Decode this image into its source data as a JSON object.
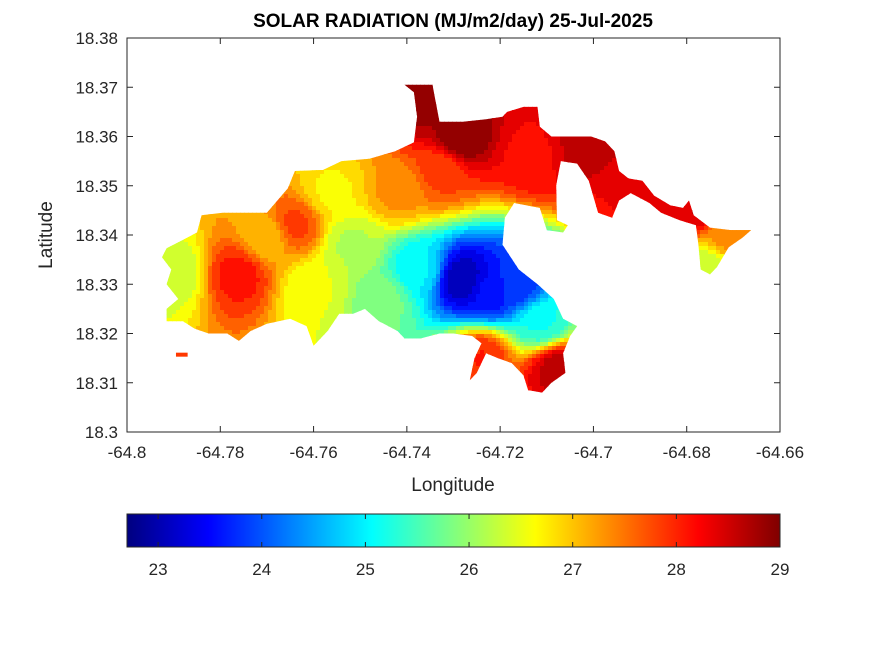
{
  "chart_data": {
    "type": "heatmap",
    "title": "SOLAR RADIATION (MJ/m2/day) 25-Jul-2025",
    "xlabel": "Longitude",
    "ylabel": "Latitude",
    "xlim": [
      -64.8,
      -64.66
    ],
    "ylim": [
      18.3,
      18.38
    ],
    "xticks": [
      -64.8,
      -64.78,
      -64.76,
      -64.74,
      -64.72,
      -64.7,
      -64.68,
      -64.66
    ],
    "yticks": [
      18.3,
      18.31,
      18.32,
      18.33,
      18.34,
      18.35,
      18.36,
      18.37,
      18.38
    ],
    "xtick_labels": [
      "-64.8",
      "-64.78",
      "-64.76",
      "-64.74",
      "-64.72",
      "-64.7",
      "-64.68",
      "-64.66"
    ],
    "ytick_labels": [
      "18.3",
      "18.31",
      "18.32",
      "18.33",
      "18.34",
      "18.35",
      "18.36",
      "18.37",
      "18.38"
    ],
    "colormap": "jet",
    "colorbar": {
      "orientation": "horizontal",
      "location": "below",
      "range": [
        22.7,
        29
      ],
      "ticks": [
        23,
        24,
        25,
        26,
        27,
        28,
        29
      ],
      "tick_labels": [
        "23",
        "24",
        "25",
        "26",
        "27",
        "28",
        "29"
      ]
    },
    "land_outline": [
      [
        -64.7915,
        18.3373
      ],
      [
        -64.788,
        18.339
      ],
      [
        -64.785,
        18.3405
      ],
      [
        -64.784,
        18.344
      ],
      [
        -64.7795,
        18.3445
      ],
      [
        -64.77,
        18.3445
      ],
      [
        -64.7655,
        18.3495
      ],
      [
        -64.764,
        18.353
      ],
      [
        -64.758,
        18.3532
      ],
      [
        -64.754,
        18.355
      ],
      [
        -64.748,
        18.3555
      ],
      [
        -64.7425,
        18.357
      ],
      [
        -64.7385,
        18.3588
      ],
      [
        -64.7378,
        18.364
      ],
      [
        -64.7385,
        18.369
      ],
      [
        -64.7405,
        18.3705
      ],
      [
        -64.7345,
        18.3705
      ],
      [
        -64.734,
        18.368
      ],
      [
        -64.733,
        18.363
      ],
      [
        -64.728,
        18.363
      ],
      [
        -64.723,
        18.3635
      ],
      [
        -64.7195,
        18.364
      ],
      [
        -64.7185,
        18.365
      ],
      [
        -64.715,
        18.366
      ],
      [
        -64.712,
        18.366
      ],
      [
        -64.7115,
        18.362
      ],
      [
        -64.709,
        18.36
      ],
      [
        -64.7055,
        18.36
      ],
      [
        -64.7005,
        18.36
      ],
      [
        -64.6975,
        18.359
      ],
      [
        -64.6955,
        18.357
      ],
      [
        -64.6945,
        18.353
      ],
      [
        -64.6925,
        18.3515
      ],
      [
        -64.6895,
        18.351
      ],
      [
        -64.687,
        18.348
      ],
      [
        -64.6835,
        18.346
      ],
      [
        -64.6808,
        18.3455
      ],
      [
        -64.6795,
        18.347
      ],
      [
        -64.6785,
        18.344
      ],
      [
        -64.675,
        18.3415
      ],
      [
        -64.6705,
        18.341
      ],
      [
        -64.6662,
        18.341
      ],
      [
        -64.668,
        18.3395
      ],
      [
        -64.671,
        18.3375
      ],
      [
        -64.6735,
        18.3335
      ],
      [
        -64.675,
        18.332
      ],
      [
        -64.677,
        18.333
      ],
      [
        -64.6775,
        18.338
      ],
      [
        -64.678,
        18.342
      ],
      [
        -64.6815,
        18.343
      ],
      [
        -64.6855,
        18.3445
      ],
      [
        -64.688,
        18.3465
      ],
      [
        -64.692,
        18.3485
      ],
      [
        -64.6945,
        18.347
      ],
      [
        -64.696,
        18.3435
      ],
      [
        -64.699,
        18.3445
      ],
      [
        -64.701,
        18.351
      ],
      [
        -64.7035,
        18.3545
      ],
      [
        -64.707,
        18.355
      ],
      [
        -64.708,
        18.35
      ],
      [
        -64.7078,
        18.343
      ],
      [
        -64.7055,
        18.342
      ],
      [
        -64.7065,
        18.3405
      ],
      [
        -64.71,
        18.341
      ],
      [
        -64.7115,
        18.3455
      ],
      [
        -64.717,
        18.3465
      ],
      [
        -64.719,
        18.3435
      ],
      [
        -64.7195,
        18.338
      ],
      [
        -64.716,
        18.333
      ],
      [
        -64.712,
        18.33
      ],
      [
        -64.7085,
        18.327
      ],
      [
        -64.7065,
        18.323
      ],
      [
        -64.7035,
        18.3215
      ],
      [
        -64.705,
        18.3195
      ],
      [
        -64.7065,
        18.316
      ],
      [
        -64.706,
        18.312
      ],
      [
        -64.709,
        18.31
      ],
      [
        -64.711,
        18.308
      ],
      [
        -64.714,
        18.3085
      ],
      [
        -64.715,
        18.3115
      ],
      [
        -64.7175,
        18.314
      ],
      [
        -64.7205,
        18.315
      ],
      [
        -64.723,
        18.316
      ],
      [
        -64.725,
        18.312
      ],
      [
        -64.7265,
        18.3105
      ],
      [
        -64.7255,
        18.315
      ],
      [
        -64.724,
        18.318
      ],
      [
        -64.726,
        18.3195
      ],
      [
        -64.73,
        18.32
      ],
      [
        -64.733,
        18.32
      ],
      [
        -64.737,
        18.319
      ],
      [
        -64.7405,
        18.319
      ],
      [
        -64.742,
        18.3205
      ],
      [
        -64.746,
        18.3225
      ],
      [
        -64.749,
        18.325
      ],
      [
        -64.7515,
        18.324
      ],
      [
        -64.7545,
        18.324
      ],
      [
        -64.757,
        18.3205
      ],
      [
        -64.76,
        18.3175
      ],
      [
        -64.7615,
        18.3215
      ],
      [
        -64.765,
        18.323
      ],
      [
        -64.77,
        18.322
      ],
      [
        -64.7735,
        18.3205
      ],
      [
        -64.776,
        18.3185
      ],
      [
        -64.7785,
        18.32
      ],
      [
        -64.7825,
        18.32
      ],
      [
        -64.7855,
        18.321
      ],
      [
        -64.788,
        18.3225
      ],
      [
        -64.7915,
        18.3225
      ],
      [
        -64.7915,
        18.325
      ],
      [
        -64.789,
        18.327
      ],
      [
        -64.7915,
        18.33
      ],
      [
        -64.7905,
        18.333
      ],
      [
        -64.7925,
        18.3355
      ],
      [
        -64.7915,
        18.3373
      ]
    ],
    "islets": [
      [
        -64.7895,
        18.3157
      ],
      [
        -64.787,
        18.316
      ]
    ],
    "field_centers": [
      {
        "lon": -64.728,
        "lat": 18.331,
        "value": 23.0
      },
      {
        "lon": -64.7225,
        "lat": 18.3285,
        "value": 23.5
      },
      {
        "lon": -64.7165,
        "lat": 18.33,
        "value": 23.8
      },
      {
        "lon": -64.7375,
        "lat": 18.333,
        "value": 25.0
      },
      {
        "lon": -64.711,
        "lat": 18.322,
        "value": 25.2
      },
      {
        "lon": -64.745,
        "lat": 18.327,
        "value": 25.8
      },
      {
        "lon": -64.752,
        "lat": 18.338,
        "value": 26.2
      },
      {
        "lon": -64.76,
        "lat": 18.329,
        "value": 26.5
      },
      {
        "lon": -64.79,
        "lat": 18.3325,
        "value": 26.3
      },
      {
        "lon": -64.764,
        "lat": 18.342,
        "value": 27.8
      },
      {
        "lon": -64.776,
        "lat": 18.332,
        "value": 28.1
      },
      {
        "lon": -64.77,
        "lat": 18.3395,
        "value": 27.0
      },
      {
        "lon": -64.742,
        "lat": 18.349,
        "value": 27.3
      },
      {
        "lon": -64.733,
        "lat": 18.353,
        "value": 27.8
      },
      {
        "lon": -64.7285,
        "lat": 18.36,
        "value": 29.0
      },
      {
        "lon": -64.737,
        "lat": 18.3665,
        "value": 28.8
      },
      {
        "lon": -64.713,
        "lat": 18.356,
        "value": 28.2
      },
      {
        "lon": -64.702,
        "lat": 18.358,
        "value": 28.6
      },
      {
        "lon": -64.69,
        "lat": 18.349,
        "value": 28.3
      },
      {
        "lon": -64.678,
        "lat": 18.345,
        "value": 28.5
      },
      {
        "lon": -64.672,
        "lat": 18.3395,
        "value": 27.3
      },
      {
        "lon": -64.6755,
        "lat": 18.334,
        "value": 26.3
      },
      {
        "lon": -64.708,
        "lat": 18.313,
        "value": 28.6
      },
      {
        "lon": -64.724,
        "lat": 18.315,
        "value": 28.0
      },
      {
        "lon": -64.756,
        "lat": 18.3485,
        "value": 26.7
      }
    ]
  }
}
